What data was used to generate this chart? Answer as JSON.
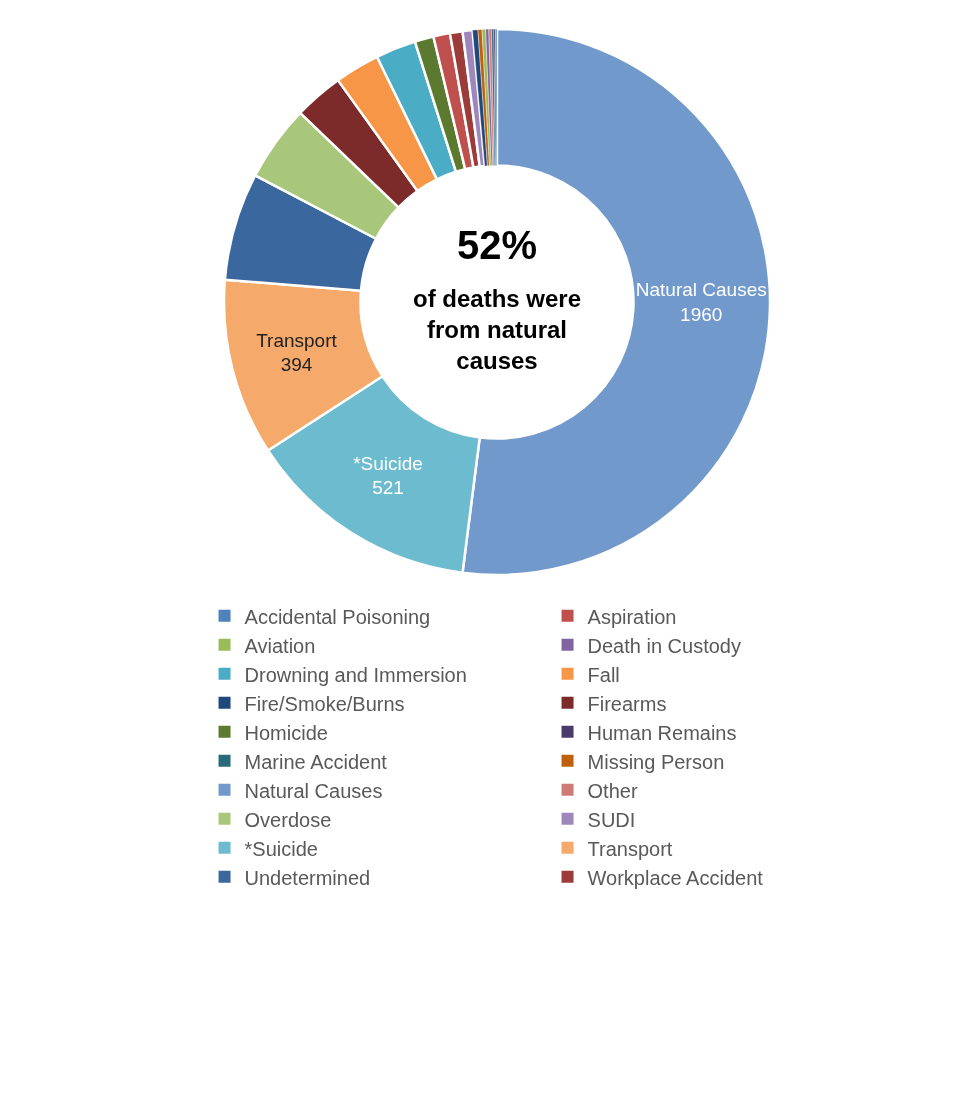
{
  "chart_data": {
    "type": "donut",
    "annotations": [
      "52%",
      "of deaths were\nfrom natural\ncauses"
    ],
    "categories": [
      "Natural Causes",
      "*Suicide",
      "Transport",
      "Undetermined",
      "Overdose",
      "Firearms",
      "Fall",
      "Drowning and Immersion",
      "Homicide",
      "Aspiration",
      "Workplace Accident",
      "SUDI",
      "Fire/Smoke/Burns",
      "Missing Person",
      "Aviation",
      "Death in Custody",
      "Other",
      "Marine Accident",
      "Human Remains",
      "Accidental Poisoning"
    ],
    "values": [
      1960,
      521,
      394,
      240,
      170,
      110,
      100,
      90,
      42,
      37,
      28,
      22,
      12,
      9,
      8,
      7,
      6,
      5,
      4,
      3
    ],
    "value_labels": [
      "Natural Causes\n1960",
      "*Suicide\n521",
      "Transport\n394",
      null,
      null,
      null,
      null,
      null,
      null,
      null,
      null,
      null,
      null,
      null,
      null,
      null,
      null,
      null,
      null,
      null
    ],
    "colors": [
      "#7199cb",
      "#6cbbcf",
      "#f5a96b",
      "#3a679d",
      "#a9c77a",
      "#7d2b2a",
      "#f79646",
      "#4bacc6",
      "#5c7a2f",
      "#c0504d",
      "#9b3c3a",
      "#9e87bd",
      "#1f497d",
      "#c0600f",
      "#9bbb59",
      "#8064a2",
      "#d07a78",
      "#276a7c",
      "#4a3b6b",
      "#4f81bd"
    ],
    "legend": "bottom"
  }
}
